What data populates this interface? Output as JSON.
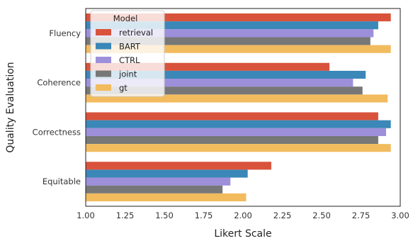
{
  "chart_data": {
    "type": "bar",
    "orientation": "horizontal",
    "xlabel": "Likert Scale",
    "ylabel": "Quality Evaluation",
    "xlim": [
      1.0,
      3.0
    ],
    "xticks": [
      "1.00",
      "1.25",
      "1.50",
      "1.75",
      "2.00",
      "2.25",
      "2.50",
      "2.75",
      "3.00"
    ],
    "categories": [
      "Fluency",
      "Coherence",
      "Correctness",
      "Equitable"
    ],
    "legend": {
      "title": "Model",
      "placement": "top-left"
    },
    "grid": false,
    "series": [
      {
        "name": "retrieval",
        "color": "#d9533c",
        "values": [
          2.94,
          2.55,
          2.86,
          2.18
        ]
      },
      {
        "name": "BART",
        "color": "#3a87b8",
        "values": [
          2.86,
          2.78,
          2.94,
          2.03
        ]
      },
      {
        "name": "CTRL",
        "color": "#9e8fdb",
        "values": [
          2.83,
          2.7,
          2.91,
          1.92
        ]
      },
      {
        "name": "joint",
        "color": "#777777",
        "values": [
          2.81,
          2.76,
          2.86,
          1.87
        ]
      },
      {
        "name": "gt",
        "color": "#f2bb5e",
        "values": [
          2.94,
          2.92,
          2.94,
          2.02
        ]
      }
    ]
  }
}
